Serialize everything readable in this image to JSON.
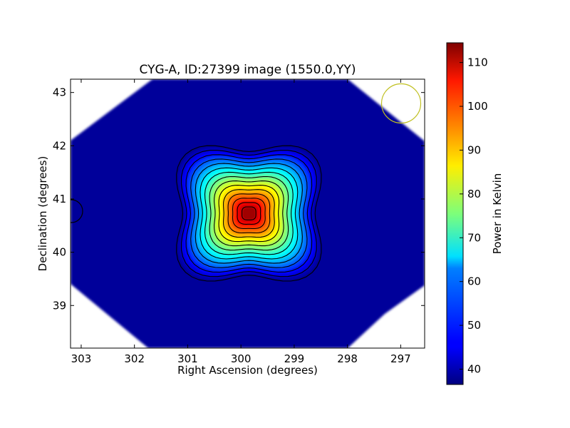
{
  "chart_data": {
    "type": "heatmap",
    "title": "CYG-A, ID:27399 image (1550.0,YY)",
    "xlabel": "Right Ascension (degrees)",
    "ylabel": "Declination (degrees)",
    "xlim": [
      303.2,
      296.55
    ],
    "ylim": [
      38.2,
      43.25
    ],
    "x_ticks": [
      303,
      302,
      301,
      300,
      299,
      298,
      297
    ],
    "y_ticks": [
      39,
      40,
      41,
      42,
      43
    ],
    "colorbar": {
      "label": "Power in Kelvin",
      "range": [
        36.5,
        114.5
      ],
      "ticks": [
        40,
        50,
        60,
        70,
        80,
        90,
        100,
        110
      ],
      "colormap": "jet"
    },
    "peak": {
      "ra": 299.85,
      "dec": 40.73,
      "value": 114
    },
    "background_level": 38,
    "contour_count": 15,
    "beam_circle": {
      "ra": 297.0,
      "dec": 42.8,
      "radius_deg": 0.37,
      "color": "#c0c020"
    },
    "partial_circle": {
      "ra": 303.2,
      "dec": 40.78,
      "radius_deg": 0.2
    },
    "grid": false,
    "legend": "none"
  }
}
